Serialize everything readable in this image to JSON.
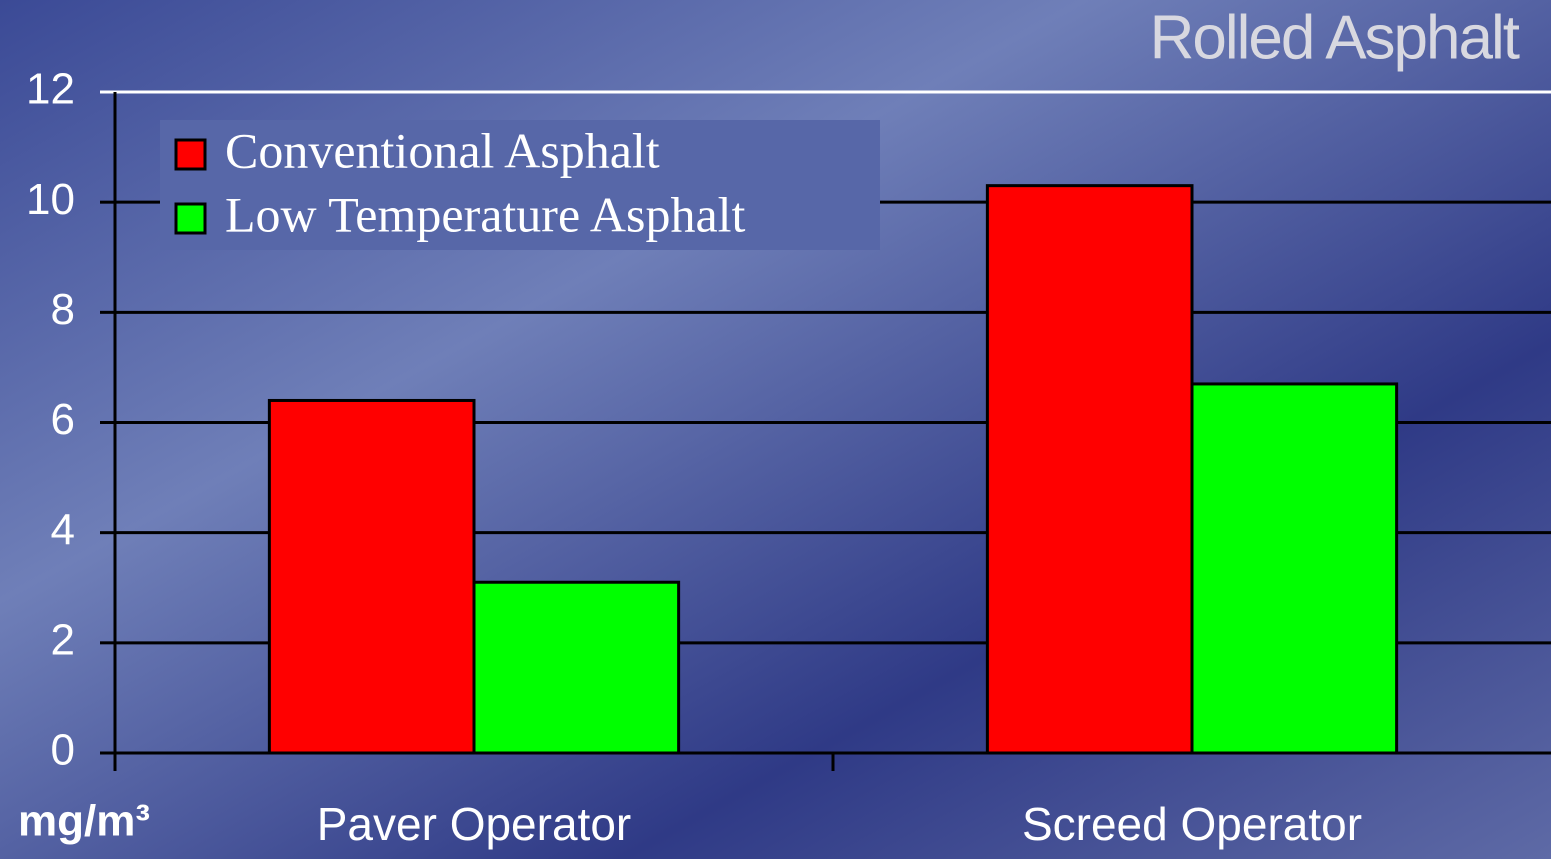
{
  "chart_data": {
    "type": "bar",
    "title": "Rolled Asphalt",
    "y_label": "mg/m³",
    "categories": [
      "Paver Operator",
      "Screed Operator"
    ],
    "series": [
      {
        "name": "Conventional Asphalt",
        "color": "#ff0000",
        "values": [
          6.4,
          10.3
        ]
      },
      {
        "name": "Low Temperature Asphalt",
        "color": "#00ff00",
        "values": [
          3.1,
          6.7
        ]
      }
    ],
    "ylim": [
      0,
      12
    ],
    "yticks": [
      0,
      2,
      4,
      6,
      8,
      10,
      12
    ],
    "grid": true
  }
}
